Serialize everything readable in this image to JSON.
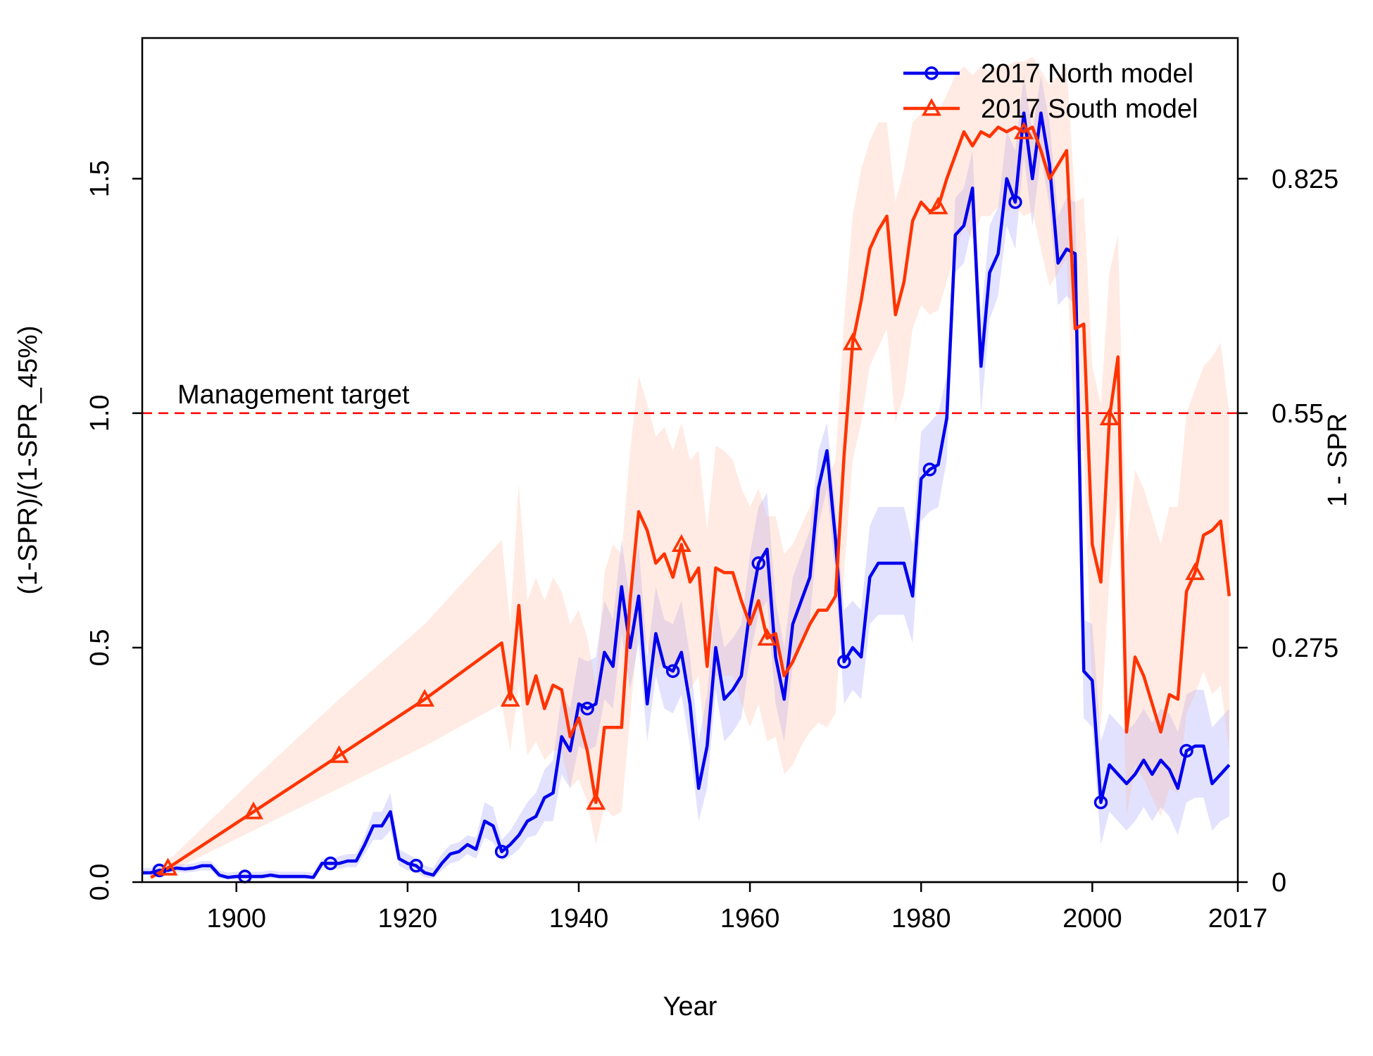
{
  "chart_data": {
    "type": "line",
    "title": "",
    "xlabel": "Year",
    "ylabel": "(1-SPR)/(1-SPR_45%)",
    "ylabel_right": "1 - SPR",
    "xlim": [
      1889,
      2017
    ],
    "ylim": [
      0,
      1.8
    ],
    "x_ticks": [
      1900,
      1920,
      1940,
      1960,
      1980,
      2000,
      2017
    ],
    "x_tick_labels": [
      "1900",
      "1920",
      "1940",
      "1960",
      "1980",
      "2000",
      "2017"
    ],
    "y_ticks": [
      0,
      0.5,
      1,
      1.5
    ],
    "y_tick_labels": [
      "0.0",
      "0.5",
      "1.0",
      "1.5"
    ],
    "y2_ticks": [
      0,
      0.5,
      1,
      1.5
    ],
    "y2_tick_labels": [
      "0",
      "0.275",
      "0.55",
      "0.825"
    ],
    "grid": false,
    "legend_position": "top-right",
    "reference_line": {
      "y": 1.0,
      "label": "Management target",
      "color": "#ff0000",
      "style": "dashed"
    },
    "series": [
      {
        "name": "2017 North model",
        "color": "#0000ee",
        "band_color": "#8a8aff",
        "marker": "circle",
        "marker_years": [
          1891,
          1901,
          1911,
          1921,
          1931,
          1941,
          1951,
          1961,
          1971,
          1981,
          1991,
          2001,
          2011
        ],
        "x": [
          1889,
          1890,
          1891,
          1892,
          1893,
          1894,
          1895,
          1896,
          1897,
          1898,
          1899,
          1900,
          1901,
          1902,
          1903,
          1904,
          1905,
          1906,
          1907,
          1908,
          1909,
          1910,
          1911,
          1912,
          1913,
          1914,
          1915,
          1916,
          1917,
          1918,
          1919,
          1920,
          1921,
          1922,
          1923,
          1924,
          1925,
          1926,
          1927,
          1928,
          1929,
          1930,
          1931,
          1932,
          1933,
          1934,
          1935,
          1936,
          1937,
          1938,
          1939,
          1940,
          1941,
          1942,
          1943,
          1944,
          1945,
          1946,
          1947,
          1948,
          1949,
          1950,
          1951,
          1952,
          1953,
          1954,
          1955,
          1956,
          1957,
          1958,
          1959,
          1960,
          1961,
          1962,
          1963,
          1964,
          1965,
          1966,
          1967,
          1968,
          1969,
          1970,
          1971,
          1972,
          1973,
          1974,
          1975,
          1976,
          1977,
          1978,
          1979,
          1980,
          1981,
          1982,
          1983,
          1984,
          1985,
          1986,
          1987,
          1988,
          1989,
          1990,
          1991,
          1992,
          1993,
          1994,
          1995,
          1996,
          1997,
          1998,
          1999,
          2000,
          2001,
          2002,
          2003,
          2004,
          2005,
          2006,
          2007,
          2008,
          2009,
          2010,
          2011,
          2012,
          2013,
          2014,
          2015,
          2016
        ],
        "y": [
          0.02,
          0.02,
          0.025,
          0.025,
          0.03,
          0.028,
          0.03,
          0.035,
          0.035,
          0.015,
          0.01,
          0.012,
          0.012,
          0.012,
          0.012,
          0.015,
          0.012,
          0.012,
          0.012,
          0.012,
          0.01,
          0.04,
          0.04,
          0.04,
          0.045,
          0.045,
          0.08,
          0.12,
          0.12,
          0.15,
          0.05,
          0.04,
          0.035,
          0.02,
          0.015,
          0.04,
          0.06,
          0.065,
          0.08,
          0.07,
          0.13,
          0.12,
          0.065,
          0.08,
          0.1,
          0.13,
          0.14,
          0.18,
          0.19,
          0.31,
          0.28,
          0.38,
          0.37,
          0.38,
          0.49,
          0.46,
          0.63,
          0.5,
          0.61,
          0.38,
          0.53,
          0.46,
          0.45,
          0.49,
          0.38,
          0.2,
          0.29,
          0.5,
          0.39,
          0.41,
          0.44,
          0.58,
          0.68,
          0.71,
          0.48,
          0.39,
          0.55,
          0.6,
          0.65,
          0.84,
          0.92,
          0.73,
          0.47,
          0.5,
          0.48,
          0.65,
          0.68,
          0.68,
          0.68,
          0.68,
          0.61,
          0.86,
          0.88,
          0.89,
          0.99,
          1.38,
          1.4,
          1.48,
          1.1,
          1.3,
          1.34,
          1.5,
          1.45,
          1.64,
          1.5,
          1.64,
          1.53,
          1.32,
          1.35,
          1.34,
          0.45,
          0.43,
          0.17,
          0.25,
          0.23,
          0.21,
          0.23,
          0.26,
          0.23,
          0.26,
          0.24,
          0.2,
          0.28,
          0.29,
          0.29,
          0.21,
          0.23,
          0.25
        ],
        "upper": [
          0.03,
          0.03,
          0.035,
          0.035,
          0.04,
          0.038,
          0.04,
          0.045,
          0.045,
          0.025,
          0.02,
          0.022,
          0.022,
          0.022,
          0.022,
          0.025,
          0.022,
          0.022,
          0.022,
          0.022,
          0.02,
          0.05,
          0.05,
          0.055,
          0.06,
          0.06,
          0.1,
          0.15,
          0.15,
          0.19,
          0.07,
          0.06,
          0.05,
          0.035,
          0.03,
          0.06,
          0.08,
          0.085,
          0.1,
          0.095,
          0.17,
          0.16,
          0.09,
          0.11,
          0.14,
          0.17,
          0.19,
          0.24,
          0.26,
          0.4,
          0.37,
          0.48,
          0.47,
          0.48,
          0.6,
          0.56,
          0.73,
          0.6,
          0.72,
          0.48,
          0.63,
          0.56,
          0.55,
          0.6,
          0.48,
          0.3,
          0.4,
          0.6,
          0.5,
          0.52,
          0.55,
          0.7,
          0.8,
          0.83,
          0.6,
          0.5,
          0.65,
          0.7,
          0.75,
          0.92,
          0.98,
          0.8,
          0.58,
          0.6,
          0.58,
          0.76,
          0.8,
          0.8,
          0.8,
          0.8,
          0.72,
          0.96,
          0.98,
          1.0,
          1.08,
          1.46,
          1.48,
          1.56,
          1.2,
          1.4,
          1.44,
          1.6,
          1.56,
          1.72,
          1.6,
          1.72,
          1.62,
          1.42,
          1.46,
          1.45,
          0.56,
          0.55,
          0.3,
          0.36,
          0.34,
          0.32,
          0.34,
          0.37,
          0.34,
          0.37,
          0.36,
          0.32,
          0.4,
          0.41,
          0.41,
          0.33,
          0.35,
          0.37
        ],
        "lower": [
          0.015,
          0.015,
          0.018,
          0.018,
          0.022,
          0.02,
          0.022,
          0.025,
          0.025,
          0.008,
          0.005,
          0.006,
          0.006,
          0.006,
          0.006,
          0.008,
          0.006,
          0.006,
          0.006,
          0.006,
          0.005,
          0.03,
          0.03,
          0.028,
          0.032,
          0.032,
          0.06,
          0.09,
          0.09,
          0.11,
          0.035,
          0.025,
          0.022,
          0.01,
          0.008,
          0.025,
          0.04,
          0.045,
          0.06,
          0.05,
          0.095,
          0.085,
          0.045,
          0.055,
          0.07,
          0.095,
          0.1,
          0.13,
          0.13,
          0.23,
          0.2,
          0.29,
          0.28,
          0.29,
          0.39,
          0.37,
          0.53,
          0.41,
          0.51,
          0.3,
          0.44,
          0.37,
          0.36,
          0.4,
          0.29,
          0.13,
          0.2,
          0.41,
          0.3,
          0.32,
          0.35,
          0.48,
          0.57,
          0.6,
          0.38,
          0.3,
          0.46,
          0.51,
          0.56,
          0.76,
          0.84,
          0.65,
          0.38,
          0.41,
          0.39,
          0.55,
          0.57,
          0.57,
          0.57,
          0.57,
          0.51,
          0.77,
          0.79,
          0.8,
          0.9,
          1.3,
          1.32,
          1.4,
          1.0,
          1.2,
          1.25,
          1.4,
          1.35,
          1.55,
          1.4,
          1.55,
          1.44,
          1.23,
          1.25,
          1.23,
          0.35,
          0.33,
          0.08,
          0.15,
          0.13,
          0.11,
          0.13,
          0.16,
          0.13,
          0.16,
          0.14,
          0.1,
          0.17,
          0.18,
          0.18,
          0.11,
          0.13,
          0.14
        ]
      },
      {
        "name": "2017 South model",
        "color": "#ff3300",
        "band_color": "#ffb090",
        "marker": "triangle",
        "marker_years": [
          1892,
          1902,
          1912,
          1922,
          1932,
          1942,
          1952,
          1962,
          1972,
          1982,
          1992,
          2002,
          2012
        ],
        "x": [
          1890,
          1892,
          1902,
          1912,
          1922,
          1931,
          1932,
          1933,
          1934,
          1935,
          1936,
          1937,
          1938,
          1939,
          1940,
          1941,
          1942,
          1943,
          1944,
          1945,
          1946,
          1947,
          1948,
          1949,
          1950,
          1951,
          1952,
          1953,
          1954,
          1955,
          1956,
          1957,
          1958,
          1959,
          1960,
          1961,
          1962,
          1963,
          1964,
          1965,
          1966,
          1967,
          1968,
          1969,
          1970,
          1971,
          1972,
          1973,
          1974,
          1975,
          1976,
          1977,
          1978,
          1979,
          1980,
          1981,
          1982,
          1983,
          1984,
          1985,
          1986,
          1987,
          1988,
          1989,
          1990,
          1991,
          1992,
          1993,
          1994,
          1995,
          1996,
          1997,
          1998,
          1999,
          2000,
          2001,
          2002,
          2003,
          2004,
          2005,
          2006,
          2007,
          2008,
          2009,
          2010,
          2011,
          2012,
          2013,
          2014,
          2015,
          2016
        ],
        "y": [
          0.01,
          0.03,
          0.15,
          0.27,
          0.39,
          0.51,
          0.39,
          0.59,
          0.38,
          0.44,
          0.37,
          0.42,
          0.41,
          0.31,
          0.35,
          0.28,
          0.17,
          0.33,
          0.33,
          0.33,
          0.6,
          0.79,
          0.75,
          0.68,
          0.7,
          0.65,
          0.72,
          0.64,
          0.67,
          0.46,
          0.67,
          0.66,
          0.66,
          0.6,
          0.55,
          0.6,
          0.52,
          0.53,
          0.44,
          0.47,
          0.51,
          0.55,
          0.58,
          0.58,
          0.61,
          0.91,
          1.15,
          1.24,
          1.35,
          1.39,
          1.42,
          1.21,
          1.28,
          1.41,
          1.45,
          1.43,
          1.44,
          1.5,
          1.55,
          1.6,
          1.57,
          1.6,
          1.59,
          1.61,
          1.6,
          1.61,
          1.6,
          1.61,
          1.56,
          1.5,
          1.53,
          1.56,
          1.18,
          1.19,
          0.72,
          0.64,
          0.99,
          1.12,
          0.32,
          0.48,
          0.44,
          0.38,
          0.32,
          0.4,
          0.39,
          0.62,
          0.66,
          0.74,
          0.75,
          0.77,
          0.61
        ],
        "upper": [
          0.015,
          0.045,
          0.22,
          0.39,
          0.55,
          0.73,
          0.55,
          0.85,
          0.6,
          0.65,
          0.6,
          0.65,
          0.62,
          0.55,
          0.58,
          0.52,
          0.42,
          0.66,
          0.72,
          0.7,
          0.92,
          1.08,
          1.02,
          0.95,
          0.97,
          0.92,
          0.98,
          0.9,
          0.92,
          0.75,
          0.93,
          0.92,
          0.9,
          0.84,
          0.8,
          0.84,
          0.78,
          0.78,
          0.7,
          0.72,
          0.76,
          0.8,
          0.84,
          0.86,
          0.9,
          1.2,
          1.42,
          1.52,
          1.58,
          1.62,
          1.62,
          1.45,
          1.52,
          1.62,
          1.64,
          1.64,
          1.64,
          1.68,
          1.72,
          1.74,
          1.72,
          1.74,
          1.73,
          1.74,
          1.74,
          1.75,
          1.75,
          1.76,
          1.73,
          1.7,
          1.72,
          1.74,
          1.45,
          1.46,
          1.1,
          1.02,
          1.3,
          1.38,
          0.72,
          0.88,
          0.84,
          0.78,
          0.72,
          0.8,
          0.8,
          1.0,
          1.05,
          1.1,
          1.12,
          1.15,
          1.0
        ],
        "lower": [
          0.005,
          0.02,
          0.11,
          0.2,
          0.29,
          0.38,
          0.28,
          0.42,
          0.27,
          0.3,
          0.26,
          0.28,
          0.28,
          0.2,
          0.22,
          0.17,
          0.08,
          0.16,
          0.14,
          0.15,
          0.35,
          0.55,
          0.5,
          0.45,
          0.47,
          0.43,
          0.5,
          0.41,
          0.44,
          0.25,
          0.44,
          0.44,
          0.44,
          0.38,
          0.33,
          0.38,
          0.3,
          0.31,
          0.23,
          0.25,
          0.29,
          0.32,
          0.34,
          0.33,
          0.36,
          0.66,
          0.9,
          0.98,
          1.1,
          1.14,
          1.18,
          0.98,
          1.04,
          1.18,
          1.23,
          1.21,
          1.22,
          1.28,
          1.34,
          1.4,
          1.37,
          1.42,
          1.42,
          1.44,
          1.43,
          1.44,
          1.42,
          1.43,
          1.35,
          1.27,
          1.3,
          1.33,
          0.92,
          0.92,
          0.4,
          0.33,
          0.65,
          0.82,
          0.14,
          0.25,
          0.22,
          0.18,
          0.14,
          0.2,
          0.19,
          0.36,
          0.4,
          0.45,
          0.4,
          0.42,
          0.28
        ]
      }
    ]
  }
}
